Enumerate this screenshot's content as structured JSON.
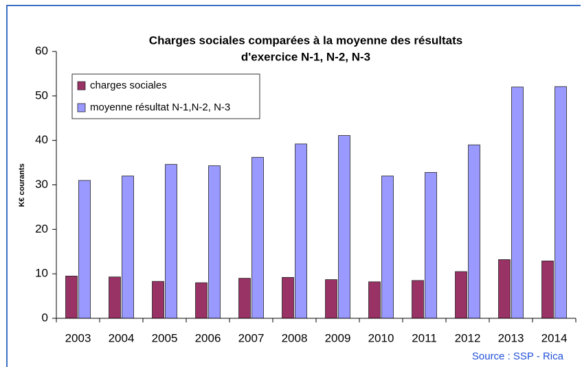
{
  "chart_data": {
    "type": "bar",
    "title": [
      "Charges sociales comparées  à la moyenne des résultats",
      "d'exercice N-1, N-2, N-3"
    ],
    "y_label": "K€ courants",
    "source": "Source : SSP - Rica",
    "categories": [
      "2003",
      "2004",
      "2005",
      "2006",
      "2007",
      "2008",
      "2009",
      "2010",
      "2011",
      "2012",
      "2013",
      "2014"
    ],
    "series": [
      {
        "name": "charges sociales",
        "color": "#993366",
        "values": [
          9.5,
          9.3,
          8.3,
          8.0,
          9.0,
          9.2,
          8.7,
          8.2,
          8.5,
          10.5,
          13.2,
          12.9
        ]
      },
      {
        "name": "moyenne résultat N-1,N-2, N-3",
        "color": "#9999ff",
        "values": [
          31.0,
          32.0,
          34.6,
          34.3,
          36.2,
          39.2,
          41.1,
          32.0,
          32.8,
          39.0,
          52.0,
          52.1
        ]
      }
    ],
    "ylim": [
      0,
      60
    ],
    "yticks": [
      0,
      10,
      20,
      30,
      40,
      50,
      60
    ],
    "grid": false,
    "legend": "top-left"
  }
}
